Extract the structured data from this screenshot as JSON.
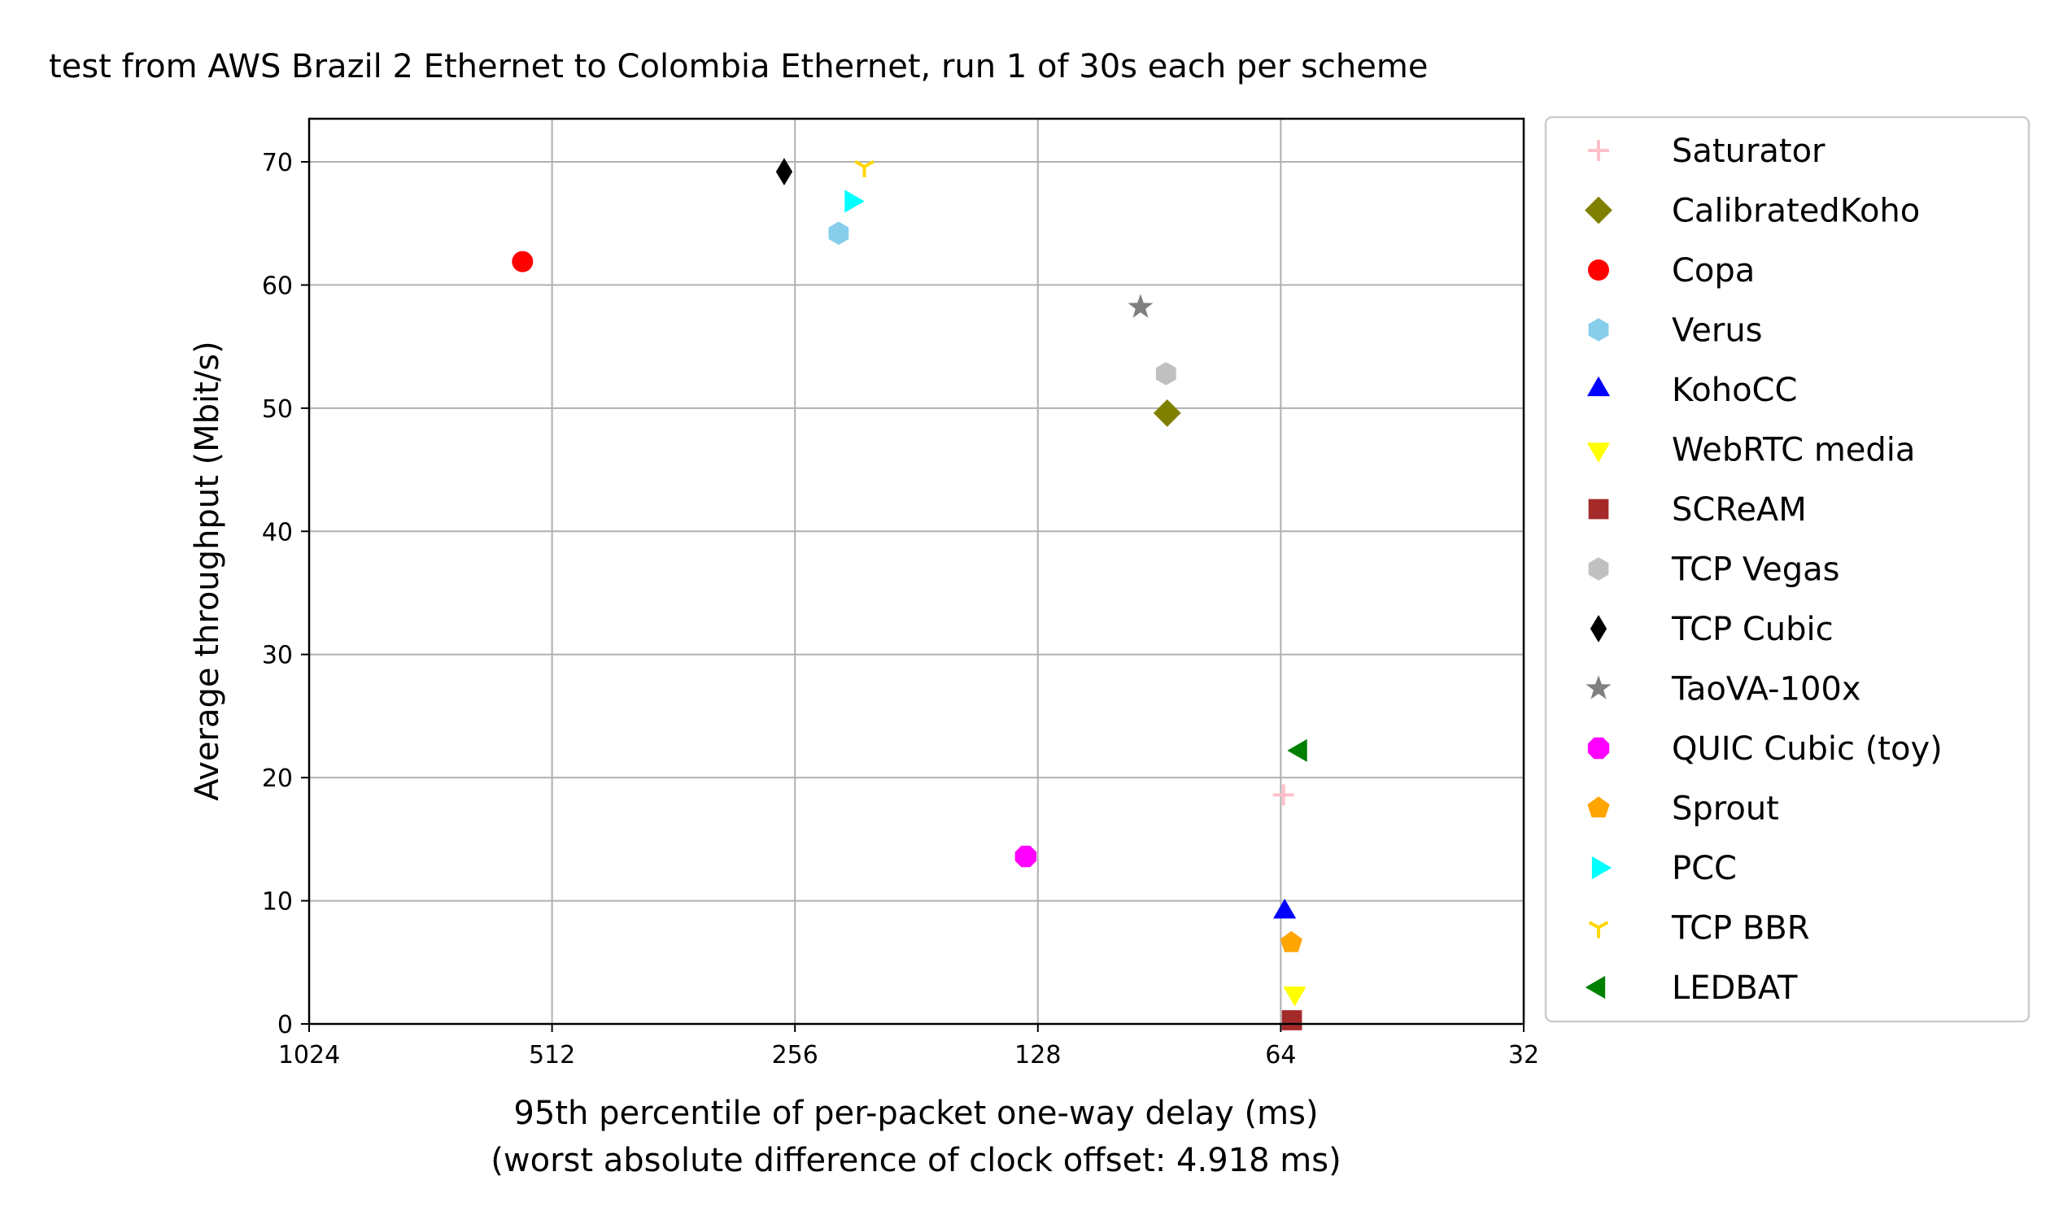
{
  "chart_data": {
    "type": "scatter",
    "title": "test from AWS Brazil 2 Ethernet to Colombia Ethernet, run 1 of 30s each per scheme",
    "xlabel": "95th percentile of per-packet one-way delay (ms)",
    "xlabel2": "(worst absolute difference of clock offset: 4.918 ms)",
    "ylabel": "Average throughput (Mbit/s)",
    "x_scale": "log2",
    "x_inverted": true,
    "xlim": [
      1024,
      32
    ],
    "ylim": [
      0,
      73.5
    ],
    "x_ticks": [
      1024,
      512,
      256,
      128,
      64,
      32
    ],
    "x_tick_labels": [
      "1024",
      "512",
      "256",
      "128",
      "64",
      "32"
    ],
    "y_ticks": [
      0,
      10,
      20,
      30,
      40,
      50,
      60,
      70
    ],
    "y_tick_labels": [
      "0",
      "10",
      "20",
      "30",
      "40",
      "50",
      "60",
      "70"
    ],
    "grid": true,
    "legend_position": "outside-right",
    "series": [
      {
        "name": "Saturator",
        "marker": "plus",
        "color": "#ffc0cb",
        "x": 63.5,
        "y": 18.6
      },
      {
        "name": "CalibratedKoho",
        "marker": "diamond",
        "color": "#808000",
        "x": 88.5,
        "y": 49.6
      },
      {
        "name": "Copa",
        "marker": "circle",
        "color": "#ff0000",
        "x": 557,
        "y": 61.9
      },
      {
        "name": "Verus",
        "marker": "hexagon",
        "color": "#87ceeb",
        "x": 226,
        "y": 64.2
      },
      {
        "name": "KohoCC",
        "marker": "triangle-up",
        "color": "#0000ff",
        "x": 63.3,
        "y": 9.1
      },
      {
        "name": "WebRTC media",
        "marker": "triangle-down",
        "color": "#ffff00",
        "x": 61.5,
        "y": 2.5
      },
      {
        "name": "SCReAM",
        "marker": "square",
        "color": "#a52a2a",
        "x": 62.0,
        "y": 0.3
      },
      {
        "name": "TCP Vegas",
        "marker": "hexagon",
        "color": "#c0c0c0",
        "x": 88.8,
        "y": 52.8
      },
      {
        "name": "TCP Cubic",
        "marker": "thin-diamond",
        "color": "#000000",
        "x": 264,
        "y": 69.2
      },
      {
        "name": "TaoVA-100x",
        "marker": "star",
        "color": "#808080",
        "x": 95.5,
        "y": 58.2
      },
      {
        "name": "QUIC Cubic (toy)",
        "marker": "octagon",
        "color": "#ff00ff",
        "x": 132.5,
        "y": 13.6
      },
      {
        "name": "Sprout",
        "marker": "pentagon",
        "color": "#ffa500",
        "x": 62.1,
        "y": 6.6
      },
      {
        "name": "PCC",
        "marker": "triangle-right",
        "color": "#00ffff",
        "x": 218,
        "y": 66.8
      },
      {
        "name": "TCP BBR",
        "marker": "tri-down",
        "color": "#ffd700",
        "x": 210,
        "y": 69.6
      },
      {
        "name": "LEDBAT",
        "marker": "triangle-left",
        "color": "#008000",
        "x": 60.5,
        "y": 22.2
      }
    ]
  }
}
